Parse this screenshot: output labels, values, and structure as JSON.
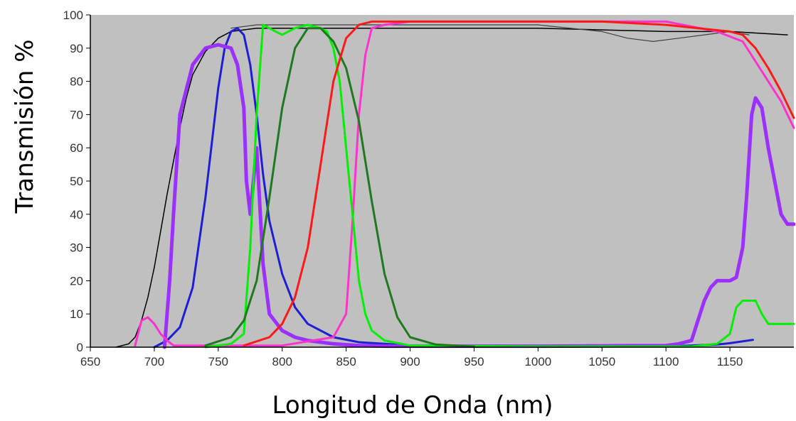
{
  "chart_data": {
    "type": "line",
    "title": "",
    "xlabel": "Longitud de Onda (nm)",
    "ylabel": "Transmisión %",
    "xlim": [
      650,
      1200
    ],
    "ylim": [
      0,
      100
    ],
    "x_ticks": [
      650,
      700,
      750,
      800,
      850,
      900,
      950,
      1000,
      1050,
      1100,
      1150
    ],
    "y_ticks": [
      0,
      10,
      20,
      30,
      40,
      50,
      60,
      70,
      80,
      90,
      100
    ],
    "plot_background": "#c0c0c0",
    "grid": false,
    "legend": "none",
    "series": [
      {
        "color": "#000000",
        "width": 1.5,
        "x": [
          670,
          680,
          685,
          690,
          695,
          700,
          705,
          710,
          715,
          720,
          725,
          730,
          740,
          750,
          760,
          780,
          800,
          850,
          900,
          1000,
          1100,
          1150,
          1195
        ],
        "y": [
          0,
          1,
          3,
          8,
          15,
          24,
          35,
          46,
          56,
          66,
          75,
          82,
          89,
          93,
          95,
          96,
          96,
          96,
          96,
          96,
          95,
          95,
          94
        ]
      },
      {
        "color": "#404040",
        "width": 1.2,
        "x": [
          760,
          780,
          800,
          850,
          900,
          950,
          1000,
          1050,
          1070,
          1090,
          1110,
          1130,
          1150,
          1165
        ],
        "y": [
          96,
          97,
          97,
          97,
          97,
          97,
          97,
          95,
          93,
          92,
          93,
          94,
          95,
          94
        ]
      },
      {
        "color": "#1e1ed2",
        "width": 3,
        "x": [
          700,
          710,
          720,
          730,
          740,
          750,
          755,
          760,
          765,
          770,
          775,
          780,
          785,
          790,
          800,
          810,
          820,
          840,
          860,
          880,
          900,
          950,
          1000,
          1050,
          1075,
          1100,
          1140,
          1150,
          1168
        ],
        "y": [
          0,
          2,
          6,
          18,
          45,
          78,
          90,
          95,
          96,
          94,
          85,
          70,
          52,
          38,
          22,
          12,
          7,
          3,
          1.5,
          1,
          0.5,
          0.3,
          0.2,
          0.2,
          0.6,
          0.2,
          0.8,
          1.2,
          2.2
        ]
      },
      {
        "color": "#9b30ff",
        "width": 5,
        "x": [
          708,
          712,
          715,
          720,
          730,
          740,
          750,
          760,
          765,
          770,
          772,
          775,
          780,
          785,
          790,
          800,
          810,
          820,
          840,
          860,
          880,
          1000,
          1100,
          1110,
          1120,
          1125,
          1130,
          1135,
          1140,
          1150,
          1155,
          1160,
          1163,
          1167,
          1170,
          1175,
          1180,
          1185,
          1190,
          1195,
          1200
        ],
        "y": [
          0,
          20,
          40,
          70,
          85,
          90,
          91,
          90,
          85,
          72,
          50,
          40,
          60,
          25,
          10,
          5,
          3,
          2,
          1,
          0.5,
          0.3,
          0.3,
          0.5,
          1,
          2,
          8,
          14,
          18,
          20,
          20,
          21,
          30,
          45,
          70,
          75,
          72,
          60,
          50,
          40,
          37,
          37
        ]
      },
      {
        "color": "#ff33cc",
        "width": 3,
        "x": [
          685,
          690,
          695,
          700,
          705,
          710,
          715,
          800,
          840,
          850,
          855,
          860,
          865,
          870,
          880,
          900,
          950,
          1000,
          1050,
          1100,
          1140,
          1160,
          1170,
          1180,
          1190,
          1200
        ],
        "y": [
          0.5,
          8,
          9,
          7,
          4,
          2,
          0.5,
          0.5,
          3,
          10,
          38,
          70,
          88,
          96,
          97,
          98,
          98,
          98,
          98,
          98,
          95,
          92,
          86,
          80,
          74,
          66
        ]
      },
      {
        "color": "#00ee00",
        "width": 3,
        "x": [
          740,
          760,
          770,
          775,
          780,
          785,
          790,
          800,
          810,
          820,
          830,
          835,
          840,
          845,
          850,
          855,
          860,
          865,
          870,
          880,
          900,
          1000,
          1120,
          1140,
          1150,
          1155,
          1160,
          1170,
          1175,
          1180,
          1190,
          1200
        ],
        "y": [
          0,
          1,
          4,
          30,
          70,
          97,
          96,
          94,
          96,
          97,
          96,
          95,
          90,
          80,
          60,
          40,
          20,
          10,
          5,
          2,
          0.5,
          0.2,
          0.2,
          1,
          4,
          12,
          14,
          14,
          10,
          7,
          7,
          7
        ]
      },
      {
        "color": "#1f7a1f",
        "width": 3,
        "x": [
          740,
          760,
          770,
          780,
          790,
          800,
          810,
          820,
          830,
          840,
          850,
          860,
          870,
          880,
          890,
          900,
          920,
          950
        ],
        "y": [
          0.5,
          3,
          8,
          20,
          45,
          72,
          90,
          96,
          96,
          92,
          84,
          68,
          44,
          22,
          9,
          3,
          0.8,
          0.2
        ]
      },
      {
        "color": "#ff1a1a",
        "width": 3,
        "x": [
          770,
          790,
          800,
          810,
          820,
          830,
          840,
          850,
          860,
          870,
          880,
          900,
          950,
          1000,
          1050,
          1100,
          1150,
          1160,
          1170,
          1180,
          1190,
          1200
        ],
        "y": [
          0.5,
          3,
          7,
          15,
          30,
          55,
          80,
          93,
          97,
          98,
          98,
          98,
          98,
          98,
          98,
          97,
          95,
          94,
          90,
          84,
          77,
          69
        ]
      }
    ]
  }
}
